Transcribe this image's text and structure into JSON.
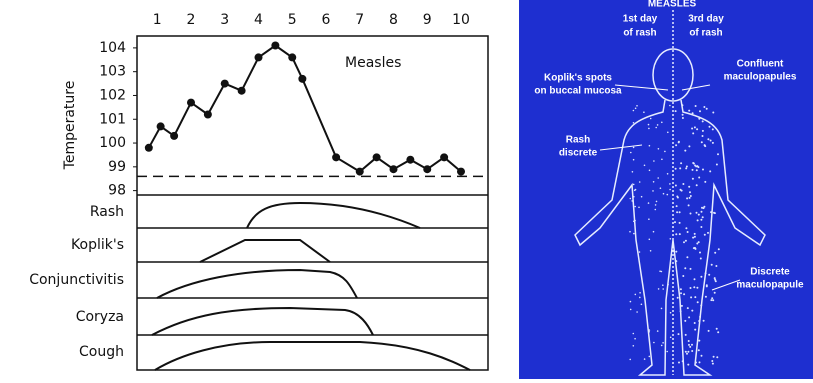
{
  "chart_data": {
    "type": "line",
    "y_label": "Temperature",
    "annotation": "Measles",
    "x": [
      0.75,
      1.1,
      1.5,
      2,
      2.5,
      3,
      3.5,
      4,
      4.5,
      5,
      5.3,
      6.3,
      7,
      7.5,
      8,
      8.5,
      9,
      9.5,
      10
    ],
    "series": [
      {
        "color": "#111111",
        "values": [
          99.8,
          100.7,
          100.3,
          101.7,
          101.2,
          102.5,
          102.2,
          103.6,
          104.1,
          103.6,
          102.7,
          99.4,
          98.8,
          99.4,
          98.9,
          99.3,
          98.9,
          99.4,
          98.8
        ]
      }
    ],
    "xlim": [
      0.4,
      10.8
    ],
    "xticks": [
      1,
      2,
      3,
      4,
      5,
      6,
      7,
      8,
      9,
      10
    ],
    "ylim": [
      97.9,
      104.5
    ],
    "yticks": [
      98,
      99,
      100,
      101,
      102,
      103,
      104
    ],
    "reference_line": 98.6,
    "symptoms": [
      "Rash",
      "Koplik's",
      "Conjunctivitis",
      "Coryza",
      "Cough"
    ]
  },
  "illustration": {
    "title": "MEASLES",
    "left_header": [
      "1st day",
      "of rash"
    ],
    "right_header": [
      "3rd day",
      "of rash"
    ],
    "labels": [
      [
        "Koplik's spots",
        "on buccal mucosa"
      ],
      [
        "Confluent",
        "maculopapules"
      ],
      [
        "Rash",
        "discrete"
      ],
      [
        "Discrete",
        "maculopapule"
      ]
    ]
  }
}
